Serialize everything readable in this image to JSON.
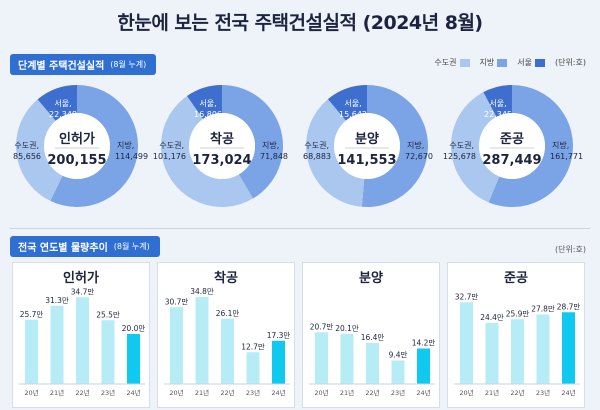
{
  "title": "한눈에 보는 전국 주택건설실적  (2024년 8월)",
  "section1": {
    "label": "단계별 주택건설실적",
    "sub": "(8월 누계)",
    "unit": "(단위:호)"
  },
  "legend": [
    {
      "label": "수도권",
      "color": "#a9c7ef"
    },
    {
      "label": "지방",
      "color": "#7aa4e6"
    },
    {
      "label": "서울",
      "color": "#3f6fce"
    }
  ],
  "section2": {
    "label": "전국 연도별 물량추이",
    "sub": "(8월 누계)",
    "unit": "(단위:호)"
  },
  "colors": {
    "seoul": "#3f6fce",
    "capital": "#a9c7ef",
    "local": "#7aa4e6",
    "bar": "#b6ecf6",
    "bar_latest": "#10c9ee"
  },
  "chart_data": [
    {
      "type": "pie",
      "title": "인허가",
      "total": "200,155",
      "slices": [
        {
          "name": "지방",
          "value": 114499,
          "label": "114,499",
          "caption": "지방,"
        },
        {
          "name": "수도권",
          "value": 85656,
          "label": "85,656",
          "caption": "수도권,"
        },
        {
          "name": "서울",
          "value": 22348,
          "label": "22,348",
          "caption": "서울,"
        }
      ]
    },
    {
      "type": "pie",
      "title": "착공",
      "total": "173,024",
      "slices": [
        {
          "name": "지방",
          "value": 71848,
          "label": "71,848",
          "caption": "지방,"
        },
        {
          "name": "수도권",
          "value": 101176,
          "label": "101,176",
          "caption": "수도권,"
        },
        {
          "name": "서울",
          "value": 16806,
          "label": "16,806",
          "caption": "서울,"
        }
      ]
    },
    {
      "type": "pie",
      "title": "분양",
      "total": "141,553",
      "slices": [
        {
          "name": "지방",
          "value": 72670,
          "label": "72,670",
          "caption": "지방,"
        },
        {
          "name": "수도권",
          "value": 68883,
          "label": "68,883",
          "caption": "수도권,"
        },
        {
          "name": "서울",
          "value": 15642,
          "label": "15,642",
          "caption": "서울,"
        }
      ]
    },
    {
      "type": "pie",
      "title": "준공",
      "total": "287,449",
      "slices": [
        {
          "name": "지방",
          "value": 161771,
          "label": "161,771",
          "caption": "지방,"
        },
        {
          "name": "수도권",
          "value": 125678,
          "label": "125,678",
          "caption": "수도권,"
        },
        {
          "name": "서울",
          "value": 22345,
          "label": "22,345",
          "caption": "서울,"
        }
      ]
    },
    {
      "type": "bar",
      "title": "인허가",
      "categories": [
        "20년",
        "21년",
        "22년",
        "23년",
        "24년"
      ],
      "values": [
        25.7,
        31.3,
        34.7,
        25.5,
        20.0
      ],
      "labels": [
        "25.7만",
        "31.3만",
        "34.7만",
        "25.5만",
        "20.0만"
      ]
    },
    {
      "type": "bar",
      "title": "착공",
      "categories": [
        "20년",
        "21년",
        "22년",
        "23년",
        "24년"
      ],
      "values": [
        30.7,
        34.8,
        26.1,
        12.7,
        17.3
      ],
      "labels": [
        "30.7만",
        "34.8만",
        "26.1만",
        "12.7만",
        "17.3만"
      ]
    },
    {
      "type": "bar",
      "title": "분양",
      "categories": [
        "20년",
        "21년",
        "22년",
        "23년",
        "24년"
      ],
      "values": [
        20.7,
        20.1,
        16.4,
        9.4,
        14.2
      ],
      "labels": [
        "20.7만",
        "20.1만",
        "16.4만",
        "9.4만",
        "14.2만"
      ]
    },
    {
      "type": "bar",
      "title": "준공",
      "categories": [
        "20년",
        "21년",
        "22년",
        "23년",
        "24년"
      ],
      "values": [
        32.7,
        24.4,
        25.9,
        27.8,
        28.7
      ],
      "labels": [
        "32.7만",
        "24.4만",
        "25.9만",
        "27.8만",
        "28.7만"
      ]
    }
  ]
}
